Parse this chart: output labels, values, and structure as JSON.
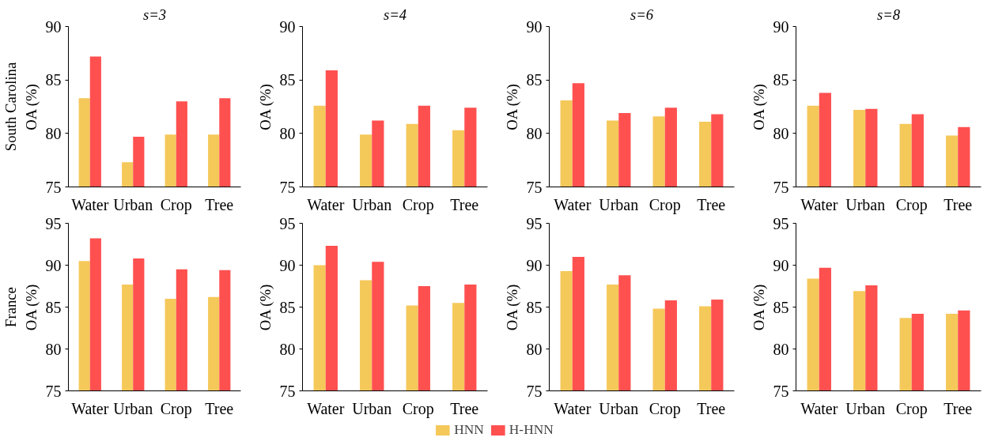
{
  "chart_data": [
    {
      "type": "bar",
      "title": "s=3",
      "ylabel": "South Carolina\nOA (%)",
      "categories": [
        "Water",
        "Urban",
        "Crop",
        "Tree"
      ],
      "ylim": [
        75,
        90
      ],
      "yticks": [
        75,
        80,
        85,
        90
      ],
      "grid": false,
      "series": [
        {
          "color": "#f5c85a",
          "values": [
            83.3,
            77.3,
            79.9,
            79.9
          ]
        },
        {
          "color": "#ff5050",
          "values": [
            87.2,
            79.7,
            83.0,
            83.3
          ]
        }
      ]
    },
    {
      "type": "bar",
      "title": "s=4",
      "ylabel": "OA (%)",
      "categories": [
        "Water",
        "Urban",
        "Crop",
        "Tree"
      ],
      "ylim": [
        75,
        90
      ],
      "yticks": [
        75,
        80,
        85,
        90
      ],
      "grid": false,
      "series": [
        {
          "color": "#f5c85a",
          "values": [
            82.6,
            79.9,
            80.9,
            80.3
          ]
        },
        {
          "color": "#ff5050",
          "values": [
            85.9,
            81.2,
            82.6,
            82.4
          ]
        }
      ]
    },
    {
      "type": "bar",
      "title": "s=6",
      "ylabel": "OA (%)",
      "categories": [
        "Water",
        "Urban",
        "Crop",
        "Tree"
      ],
      "ylim": [
        75,
        90
      ],
      "yticks": [
        75,
        80,
        85,
        90
      ],
      "grid": false,
      "series": [
        {
          "color": "#f5c85a",
          "values": [
            83.1,
            81.2,
            81.6,
            81.1
          ]
        },
        {
          "color": "#ff5050",
          "values": [
            84.7,
            81.9,
            82.4,
            81.8
          ]
        }
      ]
    },
    {
      "type": "bar",
      "title": "s=8",
      "ylabel": "OA (%)",
      "categories": [
        "Water",
        "Urban",
        "Crop",
        "Tree"
      ],
      "ylim": [
        75,
        90
      ],
      "yticks": [
        75,
        80,
        85,
        90
      ],
      "grid": false,
      "series": [
        {
          "color": "#f5c85a",
          "values": [
            82.6,
            82.2,
            80.9,
            79.8
          ]
        },
        {
          "color": "#ff5050",
          "values": [
            83.8,
            82.3,
            81.8,
            80.6
          ]
        }
      ]
    },
    {
      "type": "bar",
      "ylabel": "France\nOA (%)",
      "categories": [
        "Water",
        "Urban",
        "Crop",
        "Tree"
      ],
      "ylim": [
        75,
        95
      ],
      "yticks": [
        75,
        80,
        85,
        90,
        95
      ],
      "grid": false,
      "series": [
        {
          "color": "#f5c85a",
          "values": [
            90.5,
            87.7,
            86.0,
            86.2
          ]
        },
        {
          "color": "#ff5050",
          "values": [
            93.2,
            90.8,
            89.5,
            89.4
          ]
        }
      ]
    },
    {
      "type": "bar",
      "ylabel": "OA (%)",
      "categories": [
        "Water",
        "Urban",
        "Crop",
        "Tree"
      ],
      "ylim": [
        75,
        95
      ],
      "yticks": [
        75,
        80,
        85,
        90,
        95
      ],
      "grid": false,
      "legend": "bottom",
      "series": [
        {
          "name": "HNN",
          "color": "#f5c85a",
          "values": [
            90.0,
            88.2,
            85.2,
            85.5
          ]
        },
        {
          "name": "H-HNN",
          "color": "#ff5050",
          "values": [
            92.3,
            90.4,
            87.5,
            87.7
          ]
        }
      ]
    },
    {
      "type": "bar",
      "ylabel": "OA (%)",
      "categories": [
        "Water",
        "Urban",
        "Crop",
        "Tree"
      ],
      "ylim": [
        75,
        95
      ],
      "yticks": [
        75,
        80,
        85,
        90,
        95
      ],
      "grid": false,
      "series": [
        {
          "color": "#f5c85a",
          "values": [
            89.3,
            87.7,
            84.8,
            85.1
          ]
        },
        {
          "color": "#ff5050",
          "values": [
            91.0,
            88.8,
            85.8,
            85.9
          ]
        }
      ]
    },
    {
      "type": "bar",
      "ylabel": "OA (%)",
      "categories": [
        "Water",
        "Urban",
        "Crop",
        "Tree"
      ],
      "ylim": [
        75,
        95
      ],
      "yticks": [
        75,
        80,
        85,
        90,
        95
      ],
      "grid": false,
      "series": [
        {
          "color": "#f5c85a",
          "values": [
            88.4,
            86.9,
            83.7,
            84.2
          ]
        },
        {
          "color": "#ff5050",
          "values": [
            89.7,
            87.6,
            84.2,
            84.6
          ]
        }
      ]
    }
  ]
}
